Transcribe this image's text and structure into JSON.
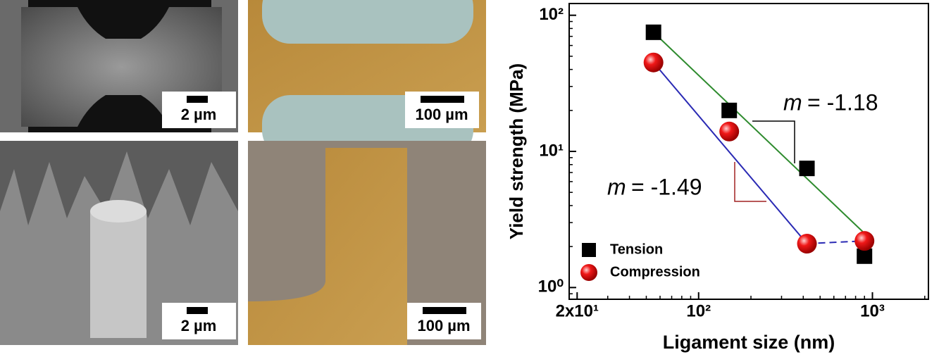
{
  "panels": [
    {
      "scale_bar": "2 µm"
    },
    {
      "scale_bar": "100 µm"
    },
    {
      "scale_bar": "2 µm"
    },
    {
      "scale_bar": "100 µm"
    }
  ],
  "chart_data": {
    "type": "scatter",
    "xlabel": "Ligament size (nm)",
    "ylabel": "Yield strength (MPa)",
    "log_x": true,
    "log_y": true,
    "xlim": [
      18,
      2100
    ],
    "ylim": [
      0.82,
      122
    ],
    "xticks": [
      {
        "value": 20,
        "label": "2x10¹"
      },
      {
        "value": 100,
        "label": "10²"
      },
      {
        "value": 1000,
        "label": "10³"
      }
    ],
    "yticks": [
      {
        "value": 1,
        "label": "10⁰"
      },
      {
        "value": 10,
        "label": "10¹"
      },
      {
        "value": 100,
        "label": "10²"
      }
    ],
    "legend": "lower left",
    "series": [
      {
        "name": "Tension",
        "color": "#000000",
        "marker": "square",
        "x": [
          55,
          150,
          420,
          900
        ],
        "values": [
          75,
          20,
          7.5,
          1.7
        ]
      },
      {
        "name": "Compression",
        "color": "#e8141e",
        "marker": "sphere",
        "x": [
          55,
          150,
          420,
          900
        ],
        "values": [
          45,
          14,
          2.1,
          2.2
        ]
      }
    ],
    "fit_lines": [
      {
        "color": "#2e8b2e",
        "dashed": false,
        "x": [
          55,
          900
        ],
        "values": [
          75,
          2.5
        ]
      },
      {
        "color": "#2a2ab4",
        "dashed": false,
        "x": [
          55,
          420
        ],
        "values": [
          45,
          2.1
        ]
      },
      {
        "color": "#2a2ab4",
        "dashed": true,
        "x": [
          420,
          900
        ],
        "values": [
          2.1,
          2.2
        ]
      }
    ],
    "annotations": [
      {
        "symbol": "m",
        "text": "= -1.18"
      },
      {
        "symbol": "m",
        "text": "= -1.49"
      }
    ]
  }
}
